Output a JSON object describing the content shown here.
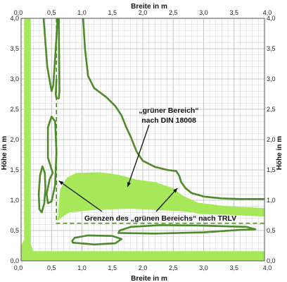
{
  "chart_data": {
    "type": "area",
    "xlabel": "Breite in m",
    "ylabel": "Höhe in m",
    "xlim": [
      0,
      4
    ],
    "ylim": [
      0,
      4
    ],
    "xticks": [
      "0,0",
      "0,5",
      "1,0",
      "1,5",
      "2,0",
      "2,5",
      "3,0",
      "3,5",
      "4,0"
    ],
    "yticks": [
      "0,0",
      "0,5",
      "1,0",
      "1,5",
      "2,0",
      "2,5",
      "3,0",
      "3,5",
      "4,0"
    ],
    "grid": true,
    "colors": {
      "green_fill": "#a6e85a",
      "green_line": "#4f8a2b",
      "grid": "#d0d0d0",
      "annotation": "#111111"
    },
    "annotations": {
      "din": {
        "line1": "„grüner Bereich“",
        "line2": "nach DIN 18008"
      },
      "trlv": "Grenzen des „grünen Bereichs“ nach TRLV"
    },
    "series": [
      {
        "kind": "fill",
        "points": [
          [
            0.05,
            4.0
          ],
          [
            0.16,
            4.0
          ],
          [
            0.16,
            0.28
          ],
          [
            0.2,
            0.16
          ],
          [
            4.0,
            0.16
          ],
          [
            4.0,
            0.0
          ],
          [
            0.0,
            0.0
          ],
          [
            0.0,
            0.25
          ],
          [
            0.05,
            0.35
          ],
          [
            0.05,
            4.0
          ]
        ]
      },
      {
        "kind": "fill",
        "points": [
          [
            0.6,
            0.66
          ],
          [
            0.64,
            1.18
          ],
          [
            0.75,
            1.37
          ],
          [
            0.9,
            1.45
          ],
          [
            1.3,
            1.46
          ],
          [
            1.6,
            1.42
          ],
          [
            1.9,
            1.34
          ],
          [
            2.2,
            1.3
          ],
          [
            2.5,
            1.2
          ],
          [
            2.65,
            1.08
          ],
          [
            2.9,
            0.96
          ],
          [
            3.3,
            0.91
          ],
          [
            4.0,
            0.87
          ],
          [
            4.0,
            0.73
          ],
          [
            3.4,
            0.76
          ],
          [
            2.95,
            0.77
          ],
          [
            2.8,
            0.8
          ],
          [
            2.6,
            0.82
          ],
          [
            2.2,
            0.84
          ],
          [
            1.8,
            0.86
          ],
          [
            1.2,
            0.84
          ],
          [
            0.8,
            0.8
          ],
          [
            0.7,
            0.74
          ],
          [
            0.6,
            0.66
          ]
        ]
      },
      {
        "kind": "line",
        "closed": false,
        "points": [
          [
            0.37,
            4.0
          ],
          [
            0.43,
            3.2
          ],
          [
            0.5,
            2.8
          ],
          [
            0.53,
            2.9
          ],
          [
            0.56,
            3.35
          ],
          [
            0.6,
            4.0
          ]
        ]
      },
      {
        "kind": "line",
        "closed": false,
        "points": [
          [
            0.58,
            3.0
          ],
          [
            0.57,
            2.75
          ],
          [
            0.58,
            2.68
          ],
          [
            0.62,
            2.68
          ],
          [
            0.63,
            2.8
          ],
          [
            0.62,
            4.0
          ]
        ]
      },
      {
        "kind": "line",
        "closed": false,
        "points": [
          [
            1.02,
            4.0
          ],
          [
            1.05,
            3.5
          ],
          [
            1.1,
            3.05
          ],
          [
            1.2,
            2.85
          ],
          [
            1.4,
            2.7
          ],
          [
            1.55,
            2.55
          ],
          [
            1.65,
            2.4
          ],
          [
            1.73,
            2.2
          ],
          [
            1.8,
            2.05
          ],
          [
            1.9,
            1.8
          ],
          [
            2.0,
            1.65
          ],
          [
            2.2,
            1.55
          ],
          [
            2.4,
            1.5
          ],
          [
            2.55,
            1.48
          ],
          [
            2.6,
            1.4
          ],
          [
            2.63,
            1.3
          ],
          [
            2.7,
            1.2
          ],
          [
            2.8,
            1.12
          ],
          [
            3.0,
            1.06
          ],
          [
            3.3,
            1.03
          ],
          [
            3.6,
            1.02
          ],
          [
            4.0,
            1.02
          ]
        ]
      },
      {
        "kind": "line",
        "closed": true,
        "points": [
          [
            0.52,
            1.45
          ],
          [
            0.44,
            1.7
          ],
          [
            0.44,
            2.2
          ],
          [
            0.5,
            2.38
          ],
          [
            0.56,
            2.3
          ],
          [
            0.58,
            1.8
          ],
          [
            0.56,
            1.25
          ],
          [
            0.5,
            0.98
          ],
          [
            0.44,
            0.95
          ],
          [
            0.42,
            1.1
          ],
          [
            0.47,
            1.35
          ]
        ]
      },
      {
        "kind": "line",
        "closed": true,
        "points": [
          [
            0.35,
            1.56
          ],
          [
            0.31,
            1.4
          ],
          [
            0.29,
            1.1
          ],
          [
            0.3,
            0.85
          ],
          [
            0.34,
            0.8
          ],
          [
            0.38,
            0.95
          ],
          [
            0.4,
            1.2
          ],
          [
            0.39,
            1.45
          ]
        ]
      },
      {
        "kind": "line",
        "closed": true,
        "points": [
          [
            0.85,
            0.3
          ],
          [
            1.2,
            0.27
          ],
          [
            1.55,
            0.29
          ],
          [
            1.65,
            0.36
          ],
          [
            1.5,
            0.41
          ],
          [
            1.1,
            0.42
          ],
          [
            0.88,
            0.38
          ],
          [
            0.84,
            0.33
          ]
        ]
      },
      {
        "kind": "line",
        "closed": true,
        "points": [
          [
            1.6,
            0.46
          ],
          [
            2.2,
            0.45
          ],
          [
            3.0,
            0.47
          ],
          [
            3.6,
            0.51
          ],
          [
            3.85,
            0.52
          ],
          [
            3.7,
            0.56
          ],
          [
            3.0,
            0.58
          ],
          [
            2.3,
            0.59
          ],
          [
            1.8,
            0.56
          ],
          [
            1.62,
            0.5
          ]
        ]
      },
      {
        "kind": "dashed",
        "closed": false,
        "points": [
          [
            0.58,
            4.0
          ],
          [
            0.58,
            0.62
          ],
          [
            4.0,
            0.62
          ]
        ]
      }
    ]
  }
}
